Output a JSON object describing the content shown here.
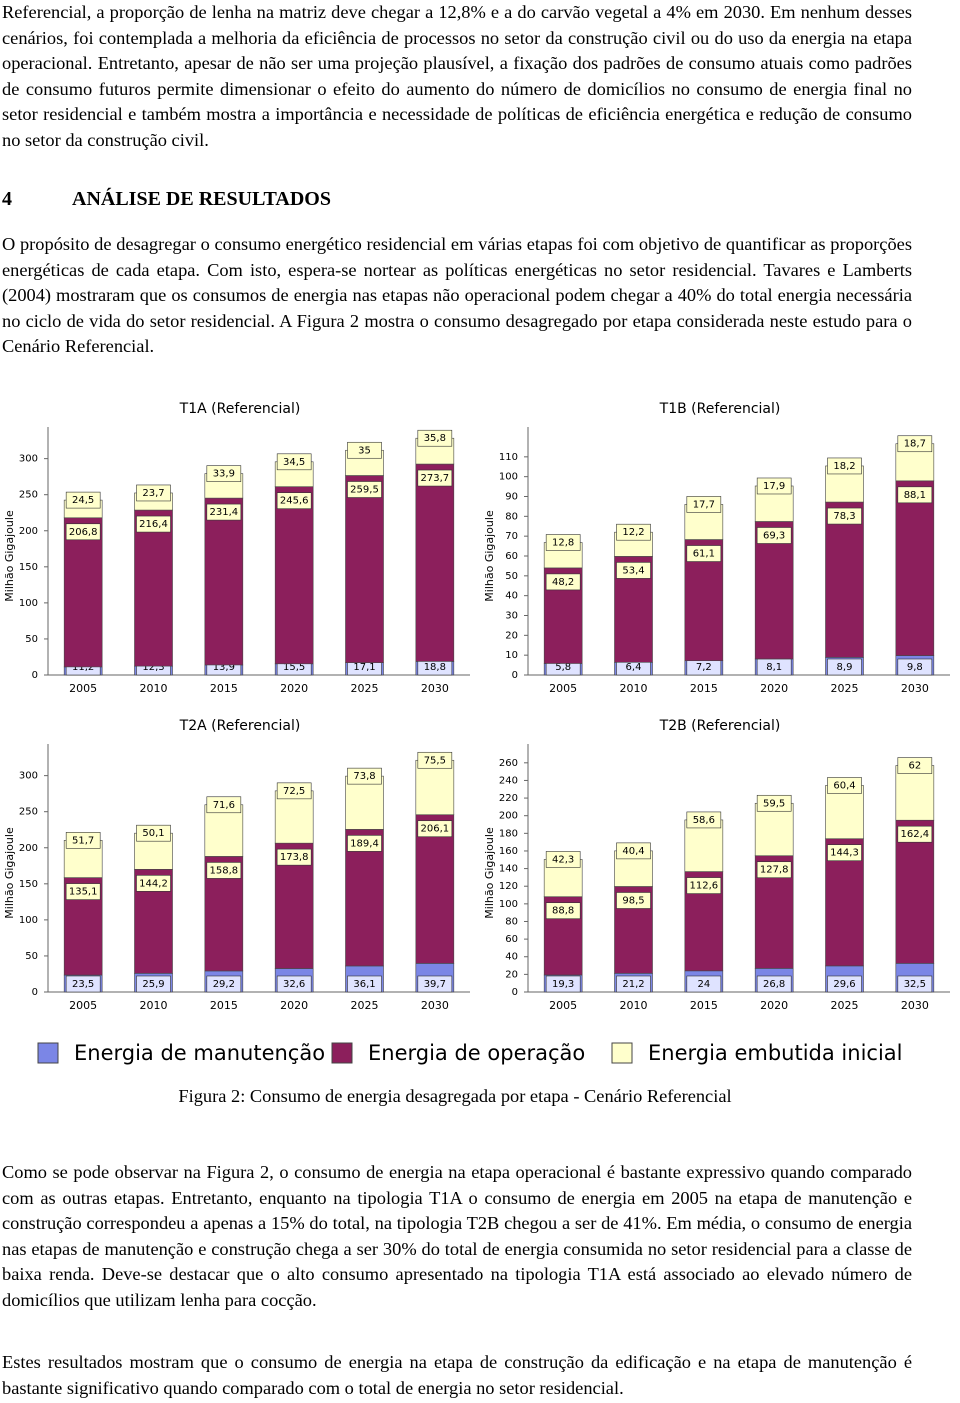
{
  "paragraphs": [
    "Referencial, a proporção de lenha na matriz deve chegar a 12,8% e a do carvão vegetal a 4% em 2030. Em nenhum desses cenários, foi contemplada a melhoria da eficiência de processos no setor da construção civil ou do uso da energia na etapa operacional. Entretanto, apesar de não ser uma projeção plausível, a fixação dos padrões de consumo atuais como padrões de consumo futuros permite dimensionar o efeito do aumento do número de domicílios no consumo de energia final no setor residencial e também mostra a importância e necessidade de políticas de eficiência energética e redução de consumo no setor da construção civil.",
    "O propósito de desagregar o consumo energético residencial em várias etapas foi com objetivo de quantificar as proporções energéticas de cada etapa. Com isto, espera-se nortear as políticas energéticas no setor residencial. Tavares e Lamberts (2004) mostraram que os consumos de energia nas etapas não operacional podem chegar a 40% do total energia necessária no ciclo de vida do setor residencial. A Figura 2 mostra o consumo desagregado por etapa considerada neste estudo para o Cenário Referencial.",
    "Como se pode observar na Figura 2, o consumo de energia na etapa operacional é bastante expressivo quando comparado com as outras etapas. Entretanto, enquanto na tipologia T1A o consumo de energia em 2005 na etapa de manutenção e construção correspondeu a apenas a 15% do total, na tipologia T2B chegou a ser de 41%. Em média, o consumo de energia nas etapas de manutenção e construção chega a ser 30% do total de energia consumida no setor residencial para a classe de baixa renda. Deve-se destacar que o alto consumo apresentado na tipologia T1A está associado ao elevado número de domicílios que utilizam lenha para cocção.",
    "Estes resultados mostram que o consumo de energia na etapa de construção da edificação e na etapa de manutenção é bastante significativo quando comparado com o total de energia no setor residencial."
  ],
  "heading": {
    "number": "4",
    "title": "ANÁLISE DE RESULTADOS"
  },
  "caption": "Figura 2: Consumo de energia desagregada por etapa - Cenário Referencial",
  "chart_data": [
    {
      "type": "stacked-bar",
      "title": "T1A (Referencial)",
      "y_label": "Milhão Gigajoule",
      "categories": [
        "2005",
        "2010",
        "2015",
        "2020",
        "2025",
        "2030"
      ],
      "series": [
        {
          "name": "Energia de manutenção",
          "color": "#7b86e6",
          "values": [
            11.2,
            12.3,
            13.9,
            15.5,
            17.1,
            18.8
          ],
          "value_labels": [
            "11,2",
            "12,3",
            "13,9",
            "15,5",
            "17,1",
            "18,8"
          ]
        },
        {
          "name": "Energia de operação",
          "color": "#8c1f5c",
          "values": [
            206.8,
            216.4,
            231.4,
            245.6,
            259.5,
            273.7
          ],
          "value_labels": [
            "206,8",
            "216,4",
            "231,4",
            "245,6",
            "259,5",
            "273,7"
          ]
        },
        {
          "name": "Energia embutida inicial",
          "color": "#ffffcc",
          "values": [
            24.5,
            23.7,
            33.9,
            34.5,
            35,
            35.8
          ],
          "value_labels": [
            "24,5",
            "23,7",
            "33,9",
            "34,5",
            "35",
            "35,8"
          ]
        }
      ],
      "ylim": [
        0,
        330
      ],
      "yticks": [
        0,
        50,
        100,
        150,
        200,
        250,
        300
      ]
    },
    {
      "type": "stacked-bar",
      "title": "T1B (Referencial)",
      "y_label": "Milhão Gigajoule",
      "categories": [
        "2005",
        "2010",
        "2015",
        "2020",
        "2025",
        "2030"
      ],
      "series": [
        {
          "values": [
            5.8,
            6.4,
            7.2,
            8.1,
            8.9,
            9.8
          ],
          "value_labels": [
            "5,8",
            "6,4",
            "7,2",
            "8,1",
            "8,9",
            "9,8"
          ]
        },
        {
          "values": [
            48.2,
            53.4,
            61.1,
            69.3,
            78.3,
            88.1
          ],
          "value_labels": [
            "48,2",
            "53,4",
            "61,1",
            "69,3",
            "78,3",
            "88,1"
          ]
        },
        {
          "values": [
            12.8,
            12.2,
            17.7,
            17.9,
            18.2,
            18.7
          ],
          "value_labels": [
            "12,8",
            "12,2",
            "17,7",
            "17,9",
            "18,2",
            "18,7"
          ]
        }
      ],
      "ylim": [
        0,
        120
      ],
      "yticks": [
        0,
        10,
        20,
        30,
        40,
        50,
        60,
        70,
        80,
        90,
        100,
        110
      ]
    },
    {
      "type": "stacked-bar",
      "title": "T2A (Referencial)",
      "y_label": "Milhão Gigajoule",
      "categories": [
        "2005",
        "2010",
        "2015",
        "2020",
        "2025",
        "2030"
      ],
      "series": [
        {
          "values": [
            23.5,
            25.9,
            29.2,
            32.6,
            36.1,
            39.7
          ],
          "value_labels": [
            "23,5",
            "25,9",
            "29,2",
            "32,6",
            "36,1",
            "39,7"
          ]
        },
        {
          "values": [
            135.1,
            144.2,
            158.8,
            173.8,
            189.4,
            206.1
          ],
          "value_labels": [
            "135,1",
            "144,2",
            "158,8",
            "173,8",
            "189,4",
            "206,1"
          ]
        },
        {
          "values": [
            51.7,
            50.1,
            71.6,
            72.5,
            73.8,
            75.5
          ],
          "value_labels": [
            "51,7",
            "50,1",
            "71,6",
            "72,5",
            "73,8",
            "75,5"
          ]
        }
      ],
      "ylim": [
        0,
        330
      ],
      "yticks": [
        0,
        50,
        100,
        150,
        200,
        250,
        300
      ]
    },
    {
      "type": "stacked-bar",
      "title": "T2B (Referencial)",
      "y_label": "Milhão Gigajoule",
      "categories": [
        "2005",
        "2010",
        "2015",
        "2020",
        "2025",
        "2030"
      ],
      "series": [
        {
          "values": [
            19.3,
            21.2,
            24,
            26.8,
            29.6,
            32.5
          ],
          "value_labels": [
            "19,3",
            "21,2",
            "24",
            "26,8",
            "29,6",
            "32,5"
          ]
        },
        {
          "values": [
            88.8,
            98.5,
            112.6,
            127.8,
            144.3,
            162.4
          ],
          "value_labels": [
            "88,8",
            "98,5",
            "112,6",
            "127,8",
            "144,3",
            "162,4"
          ]
        },
        {
          "values": [
            42.3,
            40.4,
            58.6,
            59.5,
            60.4,
            62
          ],
          "value_labels": [
            "42,3",
            "40,4",
            "58,6",
            "59,5",
            "60,4",
            "62"
          ]
        }
      ],
      "ylim": [
        0,
        270
      ],
      "yticks": [
        0,
        20,
        40,
        60,
        80,
        100,
        120,
        140,
        160,
        180,
        200,
        220,
        240,
        260
      ]
    }
  ]
}
